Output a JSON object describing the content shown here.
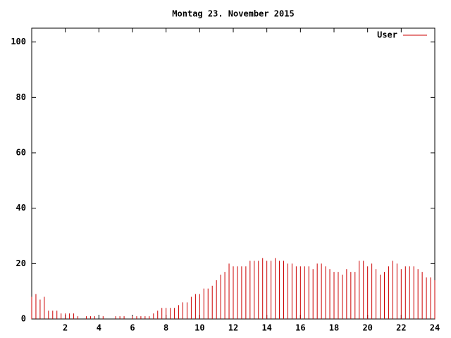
{
  "chart_data": {
    "type": "impulses",
    "title": "Montag 23. November 2015",
    "x": [
      0,
      0.25,
      0.5,
      0.75,
      1,
      1.25,
      1.5,
      1.75,
      2,
      2.25,
      2.5,
      2.75,
      3,
      3.25,
      3.5,
      3.75,
      4,
      4.25,
      4.5,
      4.75,
      5,
      5.25,
      5.5,
      5.75,
      6,
      6.25,
      6.5,
      6.75,
      7,
      7.25,
      7.5,
      7.75,
      8,
      8.25,
      8.5,
      8.75,
      9,
      9.25,
      9.5,
      9.75,
      10,
      10.25,
      10.5,
      10.75,
      11,
      11.25,
      11.5,
      11.75,
      12,
      12.25,
      12.5,
      12.75,
      13,
      13.25,
      13.5,
      13.75,
      14,
      14.25,
      14.5,
      14.75,
      15,
      15.25,
      15.5,
      15.75,
      16,
      16.25,
      16.5,
      16.75,
      17,
      17.25,
      17.5,
      17.75,
      18,
      18.25,
      18.5,
      18.75,
      19,
      19.25,
      19.5,
      19.75,
      20,
      20.25,
      20.5,
      20.75,
      21,
      21.25,
      21.5,
      21.75,
      22,
      22.25,
      22.5,
      22.75,
      23,
      23.25,
      23.5,
      23.75,
      24
    ],
    "series": [
      {
        "name": "User",
        "color": "#cc0000",
        "values": [
          8,
          9,
          7,
          8,
          3,
          3,
          3,
          2,
          2,
          2,
          2,
          1,
          0,
          1,
          1,
          1,
          0,
          1,
          0,
          0,
          1,
          1,
          1,
          0,
          1,
          1,
          1,
          1,
          1,
          2,
          3,
          4,
          4,
          4,
          4,
          5,
          6,
          6,
          8,
          9,
          9,
          11,
          11,
          12,
          14,
          16,
          17,
          20,
          19,
          19,
          19,
          19,
          21,
          21,
          21,
          22,
          21,
          21,
          22,
          21,
          21,
          20,
          20,
          19,
          19,
          19,
          19,
          18,
          20,
          20,
          19,
          18,
          17,
          17,
          16,
          18,
          17,
          17,
          21,
          21,
          19,
          20,
          18,
          16,
          17,
          19,
          21,
          20,
          18,
          19,
          19,
          19,
          18,
          17,
          15,
          15,
          14
        ]
      }
    ],
    "xlim": [
      0,
      24
    ],
    "xticks": [
      2,
      4,
      6,
      8,
      10,
      12,
      14,
      16,
      18,
      20,
      22,
      24
    ],
    "ylim": [
      0,
      105
    ],
    "yticks": [
      0,
      20,
      40,
      60,
      80,
      100
    ],
    "legend": "upper right"
  }
}
